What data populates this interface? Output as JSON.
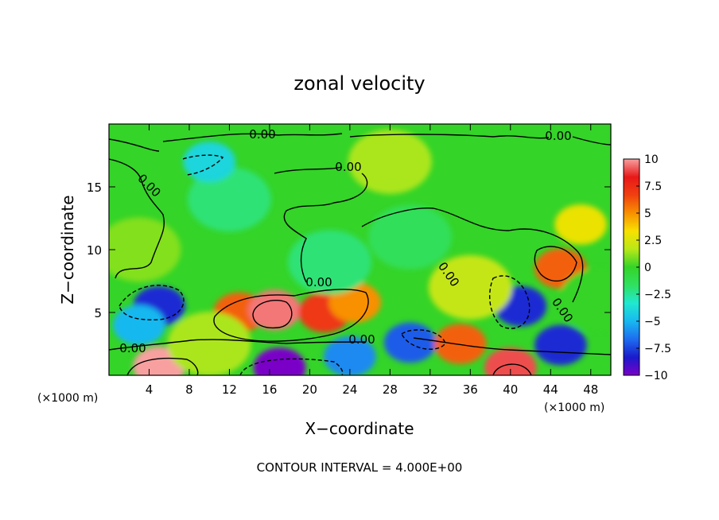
{
  "chart_data": {
    "type": "heatmap",
    "title": "zonal velocity",
    "xlabel": "X−coordinate",
    "ylabel": "Z−coordinate",
    "x_unit": "(×1000 m)",
    "xlim": [
      0,
      50
    ],
    "ylim": [
      0,
      20
    ],
    "x_ticks": [
      4,
      8,
      12,
      16,
      20,
      24,
      28,
      32,
      36,
      40,
      44,
      48
    ],
    "y_ticks": [
      5,
      10,
      15
    ],
    "colorbar": {
      "range": [
        -10,
        10
      ],
      "ticks": [
        10,
        7.5,
        5,
        2.5,
        0,
        -2.5,
        -5,
        -7.5,
        -10
      ],
      "tick_labels": [
        "10",
        "7.5",
        "5",
        "2.5",
        "0",
        "−2.5",
        "−5",
        "−7.5",
        "−10"
      ]
    },
    "colors": [
      "#7a00c8",
      "#1a1acc",
      "#1e6cf0",
      "#18b8f0",
      "#20e8d0",
      "#30e060",
      "#34d428",
      "#b8e818",
      "#f8e000",
      "#f89000",
      "#f04010",
      "#e81818",
      "#f8a0a0"
    ],
    "contour_interval_text": "CONTOUR INTERVAL = 4.000E+00",
    "contour_labels": [
      "0.00",
      "0.00",
      "0.00",
      "0.00",
      "0.00",
      "0.00",
      "0.00",
      "0.00",
      "0.00"
    ],
    "field_features": [
      {
        "x": 5,
        "z": 5.5,
        "value": -8
      },
      {
        "x": 3,
        "z": 4,
        "value": -5
      },
      {
        "x": 12,
        "z": 14,
        "value": -2
      },
      {
        "x": 10,
        "z": 17,
        "value": -4
      },
      {
        "x": 13,
        "z": 5,
        "value": 6
      },
      {
        "x": 16.5,
        "z": 5.2,
        "value": 9.5
      },
      {
        "x": 21.5,
        "z": 5,
        "value": 7
      },
      {
        "x": 24.5,
        "z": 5.8,
        "value": 5
      },
      {
        "x": 17,
        "z": 0.6,
        "value": -10
      },
      {
        "x": 24,
        "z": 1.5,
        "value": -6
      },
      {
        "x": 30,
        "z": 2.6,
        "value": -7
      },
      {
        "x": 5,
        "z": 0.7,
        "value": 10
      },
      {
        "x": 40,
        "z": 0.6,
        "value": 9
      },
      {
        "x": 35,
        "z": 2.5,
        "value": 6
      },
      {
        "x": 41,
        "z": 5.5,
        "value": -8
      },
      {
        "x": 45,
        "z": 2.4,
        "value": -8
      },
      {
        "x": 45,
        "z": 8.5,
        "value": 6
      },
      {
        "x": 47,
        "z": 12,
        "value": 3
      },
      {
        "x": 22,
        "z": 9,
        "value": -2
      },
      {
        "x": 30,
        "z": 11,
        "value": -1.5
      },
      {
        "x": 3,
        "z": 10,
        "value": 1
      },
      {
        "x": 28,
        "z": 17,
        "value": 1.5
      },
      {
        "x": 36,
        "z": 7,
        "value": 2
      },
      {
        "x": 10,
        "z": 2.5,
        "value": 1.5
      },
      {
        "x": 49,
        "z": 6,
        "value": 0
      }
    ]
  }
}
